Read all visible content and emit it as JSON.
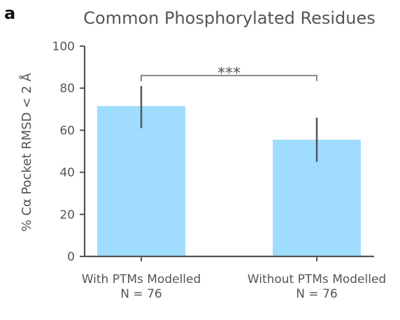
{
  "panel_label": "a",
  "chart_data": {
    "type": "bar",
    "title": "Common Phosphorylated Residues",
    "xlabel": "",
    "ylabel": "% Cα Pocket RMSD < 2 Å",
    "ylim": [
      0,
      100
    ],
    "yticks": [
      "0",
      "20",
      "40",
      "60",
      "80",
      "100"
    ],
    "grid": false,
    "categories": [
      "With PTMs Modelled",
      "Without PTMs Modelled"
    ],
    "category_sublabels": [
      "N = 76",
      "N = 76"
    ],
    "values": [
      71.5,
      55.5
    ],
    "error_low": [
      61,
      45
    ],
    "error_high": [
      81,
      66
    ],
    "bar_color": "#9fdcfd",
    "error_color": "#555555",
    "significance": {
      "from": 0,
      "to": 1,
      "label": "***",
      "y": 86
    }
  }
}
